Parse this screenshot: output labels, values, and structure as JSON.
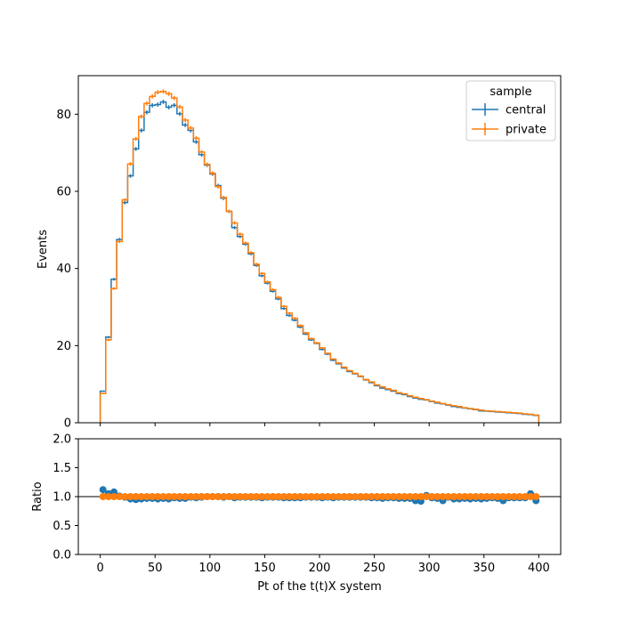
{
  "chart_data": [
    {
      "type": "line",
      "panel": "main",
      "title": "",
      "xlabel": "",
      "ylabel": "Events",
      "xlim": [
        -20,
        420
      ],
      "ylim": [
        0,
        90
      ],
      "yticks": [
        0,
        20,
        40,
        60,
        80
      ],
      "xticks": [
        0,
        50,
        100,
        150,
        200,
        250,
        300,
        350,
        400
      ],
      "grid": false,
      "style": "step histogram",
      "bin_edges_start": 0,
      "bin_width": 5,
      "legend": {
        "title": "sample",
        "placement": "top-right",
        "entries": [
          "central",
          "private"
        ]
      },
      "series": [
        {
          "name": "central",
          "color": "#1f77b4",
          "values": [
            8.2,
            22.2,
            37.2,
            47.5,
            57.1,
            64.0,
            71.0,
            75.8,
            80.5,
            82.3,
            82.5,
            83.2,
            81.8,
            82.3,
            80.1,
            77.2,
            75.8,
            72.8,
            69.5,
            66.8,
            64.5,
            61.5,
            58.2,
            54.8,
            50.6,
            48.3,
            46.3,
            43.8,
            40.8,
            38.1,
            36.2,
            34.1,
            32.1,
            29.6,
            27.8,
            26.6,
            24.8,
            23.0,
            21.5,
            20.6,
            19.0,
            17.8,
            16.2,
            15.3,
            14.2,
            13.3,
            12.7,
            12.0,
            11.1,
            10.4,
            9.6,
            9.0,
            8.6,
            8.2,
            7.6,
            7.3,
            6.8,
            6.4,
            6.1,
            5.9,
            5.5,
            5.1,
            4.9,
            4.6,
            4.2,
            4.0,
            3.8,
            3.6,
            3.4,
            3.1,
            3.0,
            2.9,
            2.8,
            2.7,
            2.6,
            2.5,
            2.4,
            2.2,
            2.1,
            1.9
          ]
        },
        {
          "name": "private",
          "color": "#ff7f0e",
          "values": [
            7.6,
            21.5,
            34.8,
            47.0,
            57.8,
            67.1,
            73.6,
            79.4,
            82.8,
            84.6,
            85.7,
            85.9,
            85.3,
            84.2,
            81.9,
            78.5,
            76.4,
            73.8,
            70.2,
            67.0,
            64.7,
            61.2,
            58.4,
            54.8,
            51.8,
            48.9,
            46.6,
            44.1,
            41.1,
            38.7,
            36.5,
            34.5,
            32.5,
            30.2,
            28.4,
            27.1,
            25.2,
            23.3,
            21.8,
            20.7,
            19.4,
            18.0,
            16.5,
            15.5,
            14.4,
            13.5,
            12.8,
            12.1,
            11.2,
            10.6,
            9.8,
            9.3,
            8.8,
            8.4,
            7.8,
            7.5,
            7.0,
            6.6,
            6.3,
            6.0,
            5.6,
            5.3,
            5.0,
            4.7,
            4.4,
            4.2,
            3.9,
            3.7,
            3.5,
            3.3,
            3.1,
            3.0,
            2.9,
            2.8,
            2.7,
            2.6,
            2.5,
            2.3,
            2.2,
            2.0
          ]
        }
      ]
    },
    {
      "type": "scatter",
      "panel": "ratio",
      "title": "",
      "xlabel": "Pt of the t(t)X system",
      "ylabel": "Ratio",
      "xlim": [
        -20,
        420
      ],
      "ylim": [
        0.0,
        2.0
      ],
      "yticks": [
        "0.0",
        "0.5",
        "1.0",
        "1.5",
        "2.0"
      ],
      "xticks": [
        "0",
        "50",
        "100",
        "150",
        "200",
        "250",
        "300",
        "350",
        "400"
      ],
      "reference_line": 1.0,
      "grid": false,
      "series": [
        {
          "color": "#1f77b4",
          "values": [
            1.12,
            1.05,
            1.08,
            1.01,
            0.99,
            0.96,
            0.95,
            0.96,
            0.97,
            0.97,
            0.96,
            0.97,
            0.96,
            0.98,
            0.97,
            0.97,
            0.99,
            0.98,
            0.99,
            1.0,
            1.0,
            1.0,
            0.99,
            1.0,
            0.98,
            0.99,
            0.99,
            0.99,
            0.99,
            0.98,
            0.99,
            0.99,
            0.99,
            0.98,
            0.98,
            0.98,
            0.98,
            0.99,
            0.99,
            0.99,
            0.98,
            0.99,
            0.98,
            0.99,
            0.99,
            0.99,
            0.99,
            0.99,
            0.99,
            0.98,
            0.98,
            0.97,
            0.98,
            0.98,
            0.97,
            0.97,
            0.97,
            0.93,
            0.92,
            1.02,
            0.98,
            0.97,
            0.93,
            0.99,
            0.96,
            0.96,
            0.97,
            0.96,
            0.97,
            0.96,
            0.97,
            0.98,
            0.97,
            0.93,
            0.98,
            0.98,
            0.98,
            0.98,
            1.05,
            0.93
          ]
        },
        {
          "color": "#ff7f0e",
          "values": [
            1.0,
            1.0,
            1.0,
            1.0,
            1.0,
            1.0,
            1.0,
            1.0,
            1.0,
            1.0,
            1.0,
            1.0,
            1.0,
            1.0,
            1.0,
            1.0,
            1.0,
            1.0,
            1.0,
            1.0,
            1.0,
            1.0,
            1.0,
            1.0,
            1.0,
            1.0,
            1.0,
            1.0,
            1.0,
            1.0,
            1.0,
            1.0,
            1.0,
            1.0,
            1.0,
            1.0,
            1.0,
            1.0,
            1.0,
            1.0,
            1.0,
            1.0,
            1.0,
            1.0,
            1.0,
            1.0,
            1.0,
            1.0,
            1.0,
            1.0,
            1.0,
            1.0,
            1.0,
            1.0,
            1.0,
            1.0,
            1.0,
            1.0,
            1.0,
            1.0,
            1.0,
            1.0,
            1.0,
            1.0,
            1.0,
            1.0,
            1.0,
            1.0,
            1.0,
            1.0,
            1.0,
            1.0,
            1.0,
            1.0,
            1.0,
            1.0,
            1.0,
            1.0,
            1.0,
            1.0
          ]
        }
      ]
    }
  ]
}
